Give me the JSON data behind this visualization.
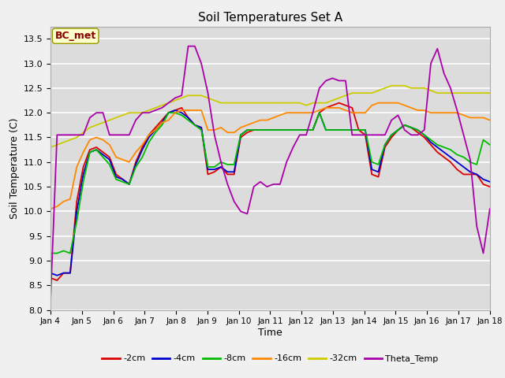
{
  "title": "Soil Temperatures Set A",
  "xlabel": "Time",
  "ylabel": "Soil Temperature (C)",
  "ylim": [
    8.0,
    13.75
  ],
  "annotation": "BC_met",
  "legend_labels": [
    "-2cm",
    "-4cm",
    "-8cm",
    "-16cm",
    "-32cm",
    "Theta_Temp"
  ],
  "legend_colors": [
    "#dd0000",
    "#0000cc",
    "#00bb00",
    "#ff8800",
    "#cccc00",
    "#aa00aa"
  ],
  "bg_color": "#dcdcdc",
  "grid_color": "#ffffff",
  "x_tick_labels": [
    "Jan 4",
    "Jan 5",
    "Jan 6",
    "Jan 7",
    "Jan 8",
    "Jan 9",
    "Jan 10",
    "Jan 11",
    "Jan 12",
    "Jan 13",
    "Jan 14",
    "Jan 15",
    "Jan 16",
    "Jan 17",
    "Jan 18"
  ],
  "series": {
    "cm2": [
      8.65,
      8.6,
      8.75,
      8.75,
      10.2,
      10.9,
      11.25,
      11.3,
      11.2,
      11.1,
      10.75,
      10.65,
      10.55,
      11.0,
      11.3,
      11.55,
      11.7,
      11.85,
      12.0,
      12.05,
      12.1,
      11.9,
      11.75,
      11.7,
      10.75,
      10.8,
      10.9,
      10.75,
      10.75,
      11.5,
      11.6,
      11.65,
      11.65,
      11.65,
      11.65,
      11.65,
      11.65,
      11.65,
      11.65,
      11.65,
      11.65,
      12.0,
      12.1,
      12.15,
      12.2,
      12.15,
      12.1,
      11.65,
      11.55,
      10.75,
      10.7,
      11.3,
      11.5,
      11.65,
      11.75,
      11.7,
      11.6,
      11.5,
      11.35,
      11.2,
      11.1,
      11.0,
      10.85,
      10.75,
      10.75,
      10.75,
      10.55,
      10.5
    ],
    "cm4": [
      8.75,
      8.7,
      8.75,
      8.75,
      10.0,
      10.75,
      11.2,
      11.25,
      11.15,
      11.05,
      10.7,
      10.65,
      10.55,
      10.95,
      11.25,
      11.5,
      11.65,
      11.8,
      12.0,
      12.05,
      12.0,
      11.9,
      11.75,
      11.7,
      10.85,
      10.85,
      10.9,
      10.8,
      10.8,
      11.55,
      11.65,
      11.65,
      11.65,
      11.65,
      11.65,
      11.65,
      11.65,
      11.65,
      11.65,
      11.65,
      11.65,
      12.0,
      11.65,
      11.65,
      11.65,
      11.65,
      11.65,
      11.65,
      11.65,
      10.85,
      10.8,
      11.35,
      11.55,
      11.65,
      11.75,
      11.7,
      11.65,
      11.55,
      11.4,
      11.3,
      11.2,
      11.1,
      11.0,
      10.9,
      10.8,
      10.75,
      10.65,
      10.6
    ],
    "cm8": [
      9.15,
      9.15,
      9.2,
      9.15,
      9.8,
      10.6,
      11.2,
      11.25,
      11.1,
      10.95,
      10.65,
      10.6,
      10.55,
      10.9,
      11.1,
      11.4,
      11.6,
      11.75,
      12.0,
      12.0,
      11.95,
      11.85,
      11.75,
      11.65,
      10.9,
      10.9,
      11.0,
      10.95,
      10.95,
      11.55,
      11.65,
      11.65,
      11.65,
      11.65,
      11.65,
      11.65,
      11.65,
      11.65,
      11.65,
      11.65,
      11.65,
      12.0,
      11.65,
      11.65,
      11.65,
      11.65,
      11.65,
      11.65,
      11.65,
      11.0,
      10.95,
      11.35,
      11.55,
      11.65,
      11.75,
      11.7,
      11.65,
      11.55,
      11.45,
      11.35,
      11.3,
      11.25,
      11.15,
      11.1,
      11.0,
      10.95,
      11.45,
      11.35
    ],
    "cm16": [
      10.05,
      10.1,
      10.2,
      10.25,
      10.9,
      11.2,
      11.45,
      11.5,
      11.45,
      11.35,
      11.1,
      11.05,
      11.0,
      11.2,
      11.35,
      11.55,
      11.65,
      11.8,
      11.85,
      12.0,
      12.05,
      12.05,
      12.05,
      12.05,
      11.65,
      11.65,
      11.7,
      11.6,
      11.6,
      11.7,
      11.75,
      11.8,
      11.85,
      11.85,
      11.9,
      11.95,
      12.0,
      12.0,
      12.0,
      12.0,
      12.0,
      12.05,
      12.1,
      12.1,
      12.1,
      12.05,
      12.0,
      12.0,
      12.0,
      12.15,
      12.2,
      12.2,
      12.2,
      12.2,
      12.15,
      12.1,
      12.05,
      12.05,
      12.0,
      12.0,
      12.0,
      12.0,
      12.0,
      11.95,
      11.9,
      11.9,
      11.9,
      11.85
    ],
    "cm32": [
      11.3,
      11.35,
      11.4,
      11.45,
      11.5,
      11.6,
      11.7,
      11.75,
      11.8,
      11.85,
      11.9,
      11.95,
      12.0,
      12.0,
      12.0,
      12.05,
      12.1,
      12.15,
      12.2,
      12.25,
      12.3,
      12.35,
      12.35,
      12.35,
      12.3,
      12.25,
      12.2,
      12.2,
      12.2,
      12.2,
      12.2,
      12.2,
      12.2,
      12.2,
      12.2,
      12.2,
      12.2,
      12.2,
      12.2,
      12.15,
      12.2,
      12.2,
      12.2,
      12.25,
      12.3,
      12.35,
      12.4,
      12.4,
      12.4,
      12.4,
      12.45,
      12.5,
      12.55,
      12.55,
      12.55,
      12.5,
      12.5,
      12.5,
      12.45,
      12.4,
      12.4,
      12.4,
      12.4,
      12.4,
      12.4,
      12.4,
      12.4,
      12.4
    ],
    "theta": [
      8.2,
      11.55,
      11.55,
      11.55,
      11.55,
      11.55,
      11.9,
      12.0,
      12.0,
      11.55,
      11.55,
      11.55,
      11.55,
      11.85,
      12.0,
      12.0,
      12.05,
      12.1,
      12.2,
      12.3,
      12.35,
      13.35,
      13.35,
      13.0,
      12.4,
      11.55,
      11.0,
      10.55,
      10.2,
      10.0,
      9.95,
      10.5,
      10.6,
      10.5,
      10.55,
      10.55,
      11.0,
      11.3,
      11.55,
      11.55,
      12.0,
      12.5,
      12.65,
      12.7,
      12.65,
      12.65,
      11.55,
      11.55,
      11.55,
      11.55,
      11.55,
      11.55,
      11.85,
      11.95,
      11.65,
      11.55,
      11.55,
      11.65,
      13.0,
      13.3,
      12.8,
      12.5,
      12.05,
      11.55,
      11.05,
      9.7,
      9.15,
      10.05
    ]
  },
  "n_points": 68,
  "yticks": [
    8.0,
    8.5,
    9.0,
    9.5,
    10.0,
    10.5,
    11.0,
    11.5,
    12.0,
    12.5,
    13.0,
    13.5
  ]
}
